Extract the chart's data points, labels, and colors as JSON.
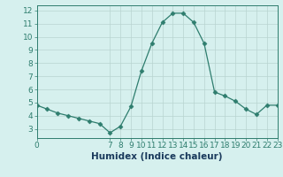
{
  "x": [
    0,
    1,
    2,
    3,
    4,
    5,
    6,
    7,
    8,
    9,
    10,
    11,
    12,
    13,
    14,
    15,
    16,
    17,
    18,
    19,
    20,
    21,
    22,
    23
  ],
  "y": [
    4.8,
    4.5,
    4.2,
    4.0,
    3.8,
    3.6,
    3.4,
    2.7,
    3.2,
    4.7,
    7.4,
    9.5,
    11.1,
    11.8,
    11.8,
    11.1,
    9.5,
    5.8,
    5.5,
    5.1,
    4.5,
    4.1,
    4.8,
    4.8
  ],
  "line_color": "#2e7d6e",
  "marker": "D",
  "marker_size": 2.5,
  "bg_color": "#d6f0ee",
  "grid_color": "#b8d4d0",
  "xlabel": "Humidex (Indice chaleur)",
  "xlim": [
    0,
    23
  ],
  "ylim": [
    2.3,
    12.4
  ],
  "yticks": [
    3,
    4,
    5,
    6,
    7,
    8,
    9,
    10,
    11,
    12
  ],
  "xticks": [
    0,
    7,
    8,
    9,
    10,
    11,
    12,
    13,
    14,
    15,
    16,
    17,
    18,
    19,
    20,
    21,
    22,
    23
  ],
  "tick_label_fontsize": 6.5,
  "xlabel_fontsize": 7.5,
  "xlabel_color": "#1a3a5c",
  "tick_color": "#2e7d6e"
}
